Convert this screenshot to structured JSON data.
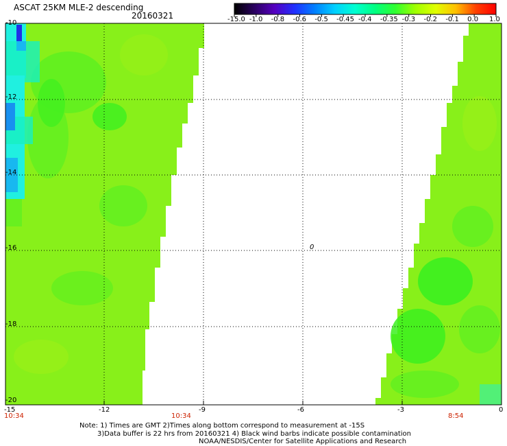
{
  "header": {
    "title": "ASCAT 25KM MLE-2 descending",
    "date": "20160321"
  },
  "colorbar": {
    "labels": [
      "-15.0",
      "-1.0",
      "-0.8",
      "-0.6",
      "-0.5",
      "-0.45",
      "-0.4",
      "-0.35",
      "-0.3",
      "-0.2",
      "-0.1",
      "0.0",
      "1.0"
    ],
    "colors": [
      "#000000",
      "#2a0060",
      "#5500c0",
      "#2030ff",
      "#0080ff",
      "#00d0ff",
      "#00ffd0",
      "#00ff80",
      "#30ff30",
      "#a0ff00",
      "#e0ff00",
      "#ffc000",
      "#ff4000",
      "#ff0000"
    ]
  },
  "map": {
    "y_ticks": [
      "-10",
      "-12",
      "-14",
      "-16",
      "-18",
      "-20"
    ],
    "x_ticks": [
      "-15",
      "-12",
      "-9",
      "-6",
      "-3",
      "0"
    ],
    "times": [
      "10:34",
      "10:34",
      "8:54"
    ],
    "marker": "0",
    "colors": {
      "base": "#88f01a",
      "light": "#98f018",
      "green": "#3cf020",
      "mid": "#60f020",
      "cyan": "#18f0c0",
      "aqua": "#20f0e0",
      "blue": "#1878f0",
      "navy": "#2030e8"
    }
  },
  "notes": [
    "Note: 1) Times are GMT 2)Times along bottom correspond to measurement at -15S",
    "3)Data buffer is 22 hrs from 20160321 4) Black wind barbs indicate possible contamination",
    "NOAA/NESDIS/Center for Satellite Applications and Research"
  ]
}
